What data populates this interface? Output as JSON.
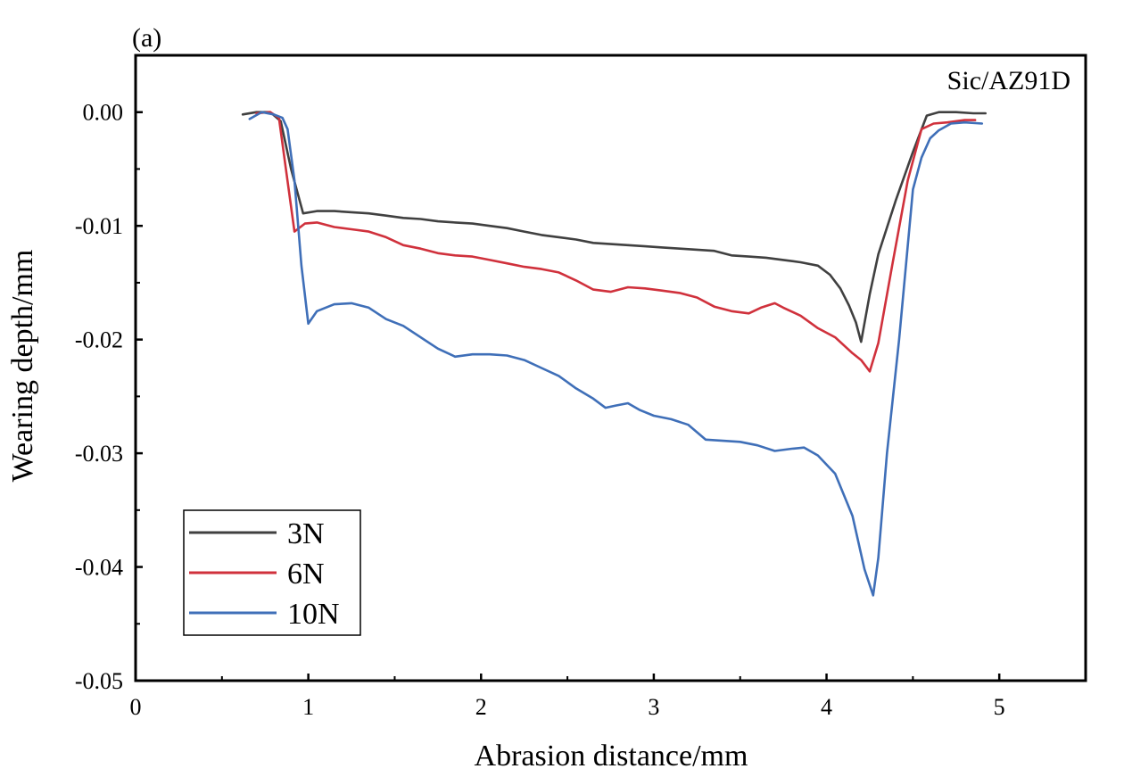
{
  "chart_data": {
    "type": "line",
    "panel_label": "(a)",
    "annotation": "Sic/AZ91D",
    "xlabel": "Abrasion distance/mm",
    "ylabel": "Wearing depth/mm",
    "xlim": [
      0,
      5.5
    ],
    "ylim": [
      -0.05,
      0.005
    ],
    "xticks": [
      0,
      1,
      2,
      3,
      4,
      5
    ],
    "xtick_labels": [
      "0",
      "1",
      "2",
      "3",
      "4",
      "5"
    ],
    "yticks": [
      0.0,
      -0.01,
      -0.02,
      -0.03,
      -0.04,
      -0.05
    ],
    "ytick_labels": [
      "0.00",
      "-0.01",
      "-0.02",
      "-0.03",
      "-0.04",
      "-0.05"
    ],
    "grid": false,
    "legend_position": "bottom-left",
    "series": [
      {
        "name": "3N",
        "color": "#404040",
        "x": [
          0.62,
          0.7,
          0.78,
          0.84,
          0.9,
          0.97,
          1.05,
          1.15,
          1.25,
          1.35,
          1.45,
          1.55,
          1.65,
          1.75,
          1.85,
          1.95,
          2.05,
          2.15,
          2.25,
          2.35,
          2.45,
          2.55,
          2.65,
          2.75,
          2.85,
          2.95,
          3.05,
          3.15,
          3.25,
          3.35,
          3.45,
          3.55,
          3.65,
          3.75,
          3.85,
          3.95,
          4.02,
          4.08,
          4.13,
          4.17,
          4.2,
          4.25,
          4.3,
          4.4,
          4.5,
          4.58,
          4.65,
          4.75,
          4.85,
          4.92
        ],
        "y": [
          -0.0002,
          0.0,
          0.0,
          -0.0008,
          -0.005,
          -0.0089,
          -0.0087,
          -0.0087,
          -0.0088,
          -0.0089,
          -0.0091,
          -0.0093,
          -0.0094,
          -0.0096,
          -0.0097,
          -0.0098,
          -0.01,
          -0.0102,
          -0.0105,
          -0.0108,
          -0.011,
          -0.0112,
          -0.0115,
          -0.0116,
          -0.0117,
          -0.0118,
          -0.0119,
          -0.012,
          -0.0121,
          -0.0122,
          -0.0126,
          -0.0127,
          -0.0128,
          -0.013,
          -0.0132,
          -0.0135,
          -0.0143,
          -0.0155,
          -0.017,
          -0.0185,
          -0.0202,
          -0.016,
          -0.0125,
          -0.0078,
          -0.0035,
          -0.0003,
          0.0,
          0.0,
          -0.0001,
          -0.0001
        ]
      },
      {
        "name": "6N",
        "color": "#d0313c",
        "x": [
          0.7,
          0.78,
          0.83,
          0.87,
          0.92,
          0.98,
          1.05,
          1.15,
          1.25,
          1.35,
          1.45,
          1.55,
          1.65,
          1.75,
          1.85,
          1.95,
          2.05,
          2.15,
          2.25,
          2.35,
          2.45,
          2.55,
          2.65,
          2.75,
          2.85,
          2.95,
          3.05,
          3.15,
          3.25,
          3.35,
          3.45,
          3.55,
          3.62,
          3.7,
          3.75,
          3.85,
          3.95,
          4.05,
          4.15,
          4.2,
          4.25,
          4.3,
          4.38,
          4.47,
          4.55,
          4.62,
          4.7,
          4.8,
          4.86
        ],
        "y": [
          -0.0001,
          0.0,
          -0.0005,
          -0.005,
          -0.0105,
          -0.0098,
          -0.0097,
          -0.0101,
          -0.0103,
          -0.0105,
          -0.011,
          -0.0117,
          -0.012,
          -0.0124,
          -0.0126,
          -0.0127,
          -0.013,
          -0.0133,
          -0.0136,
          -0.0138,
          -0.0141,
          -0.0148,
          -0.0156,
          -0.0158,
          -0.0154,
          -0.0155,
          -0.0157,
          -0.0159,
          -0.0163,
          -0.0171,
          -0.0175,
          -0.0177,
          -0.0172,
          -0.0168,
          -0.0172,
          -0.0179,
          -0.019,
          -0.0198,
          -0.0212,
          -0.0218,
          -0.0228,
          -0.0203,
          -0.0135,
          -0.006,
          -0.0015,
          -0.001,
          -0.0009,
          -0.0007,
          -0.0007
        ]
      },
      {
        "name": "10N",
        "color": "#3f6fb8",
        "x": [
          0.66,
          0.73,
          0.8,
          0.85,
          0.88,
          0.92,
          0.96,
          1.0,
          1.05,
          1.15,
          1.25,
          1.35,
          1.45,
          1.55,
          1.65,
          1.75,
          1.85,
          1.95,
          2.05,
          2.15,
          2.25,
          2.35,
          2.45,
          2.55,
          2.65,
          2.72,
          2.78,
          2.85,
          2.92,
          3.0,
          3.1,
          3.2,
          3.3,
          3.4,
          3.5,
          3.6,
          3.7,
          3.8,
          3.87,
          3.95,
          4.05,
          4.15,
          4.22,
          4.27,
          4.3,
          4.35,
          4.42,
          4.5,
          4.55,
          4.6,
          4.65,
          4.72,
          4.8,
          4.9
        ],
        "y": [
          -0.0006,
          0.0,
          -0.0002,
          -0.0005,
          -0.0015,
          -0.006,
          -0.0135,
          -0.0186,
          -0.0175,
          -0.0169,
          -0.0168,
          -0.0172,
          -0.0182,
          -0.0188,
          -0.0198,
          -0.0208,
          -0.0215,
          -0.0213,
          -0.0213,
          -0.0214,
          -0.0218,
          -0.0225,
          -0.0232,
          -0.0243,
          -0.0252,
          -0.026,
          -0.0258,
          -0.0256,
          -0.0262,
          -0.0267,
          -0.027,
          -0.0275,
          -0.0288,
          -0.0289,
          -0.029,
          -0.0293,
          -0.0298,
          -0.0296,
          -0.0295,
          -0.0302,
          -0.0318,
          -0.0355,
          -0.0402,
          -0.0425,
          -0.0392,
          -0.03,
          -0.02,
          -0.0068,
          -0.004,
          -0.0023,
          -0.0016,
          -0.001,
          -0.0009,
          -0.001
        ]
      }
    ]
  }
}
